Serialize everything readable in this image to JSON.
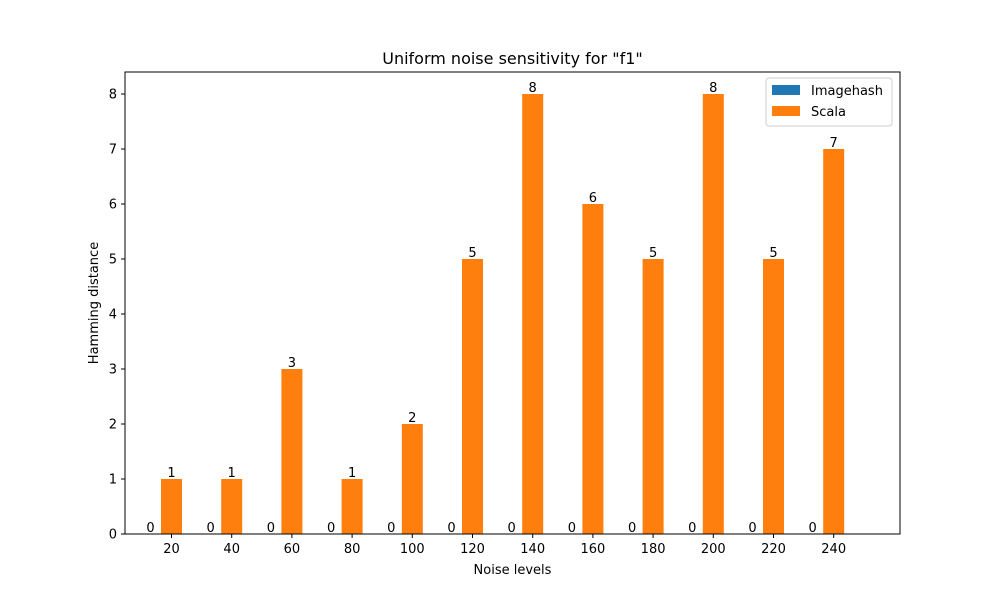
{
  "chart_data": {
    "type": "bar",
    "title": "Uniform noise sensitivity for \"f1\"",
    "xlabel": "Noise levels",
    "ylabel": "Hamming distance",
    "categories": [
      "20",
      "40",
      "60",
      "80",
      "100",
      "120",
      "140",
      "160",
      "180",
      "200",
      "220",
      "240"
    ],
    "series": [
      {
        "name": "Imagehash",
        "color": "#1f77b4",
        "values": [
          0,
          0,
          0,
          0,
          0,
          0,
          0,
          0,
          0,
          0,
          0,
          0
        ]
      },
      {
        "name": "Scala",
        "color": "#ff7f0e",
        "values": [
          1,
          1,
          3,
          1,
          2,
          5,
          8,
          6,
          5,
          8,
          5,
          7
        ]
      }
    ],
    "ylim": [
      0,
      8.4
    ],
    "yticks": [
      0,
      1,
      2,
      3,
      4,
      5,
      6,
      7,
      8
    ],
    "legend_position": "top-right",
    "grid": false
  }
}
